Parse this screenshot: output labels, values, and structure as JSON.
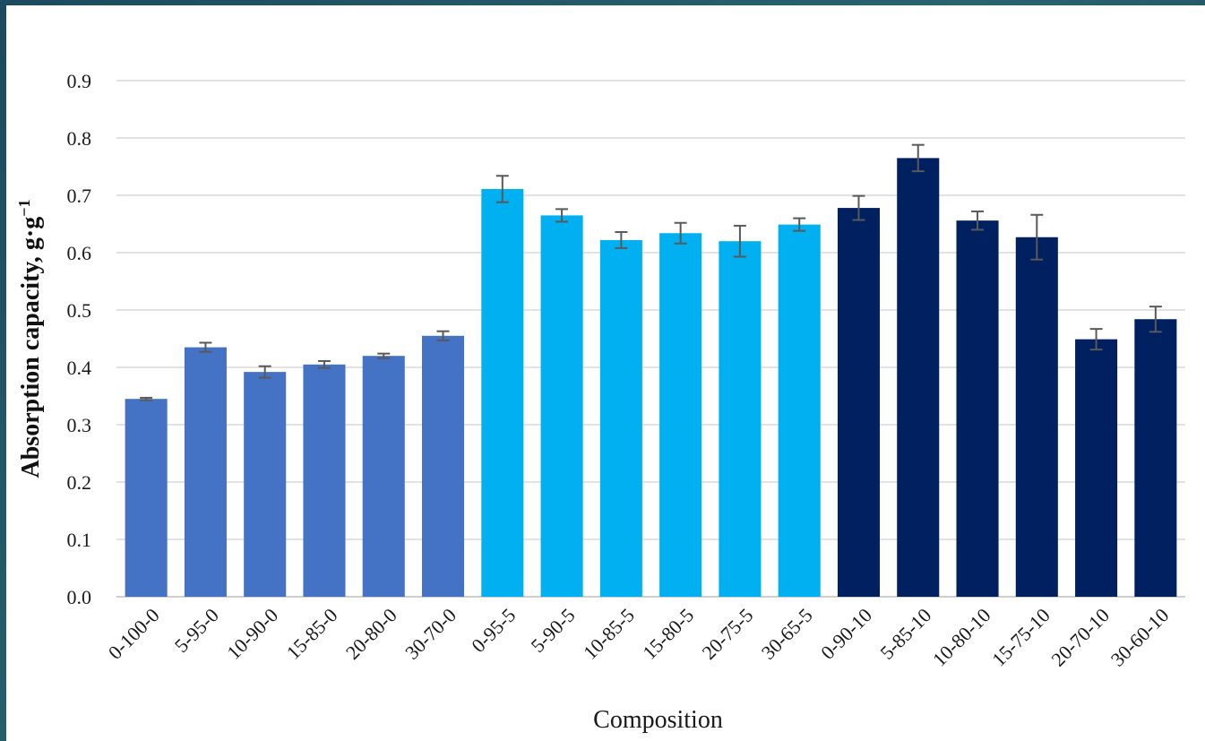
{
  "chart_data": {
    "type": "bar",
    "xlabel": "Composition",
    "ylabel": "Absorption capacity, g·g⁻¹",
    "ylim": [
      0,
      0.9
    ],
    "yticks": [
      "0.0",
      "0.1",
      "0.2",
      "0.3",
      "0.4",
      "0.5",
      "0.6",
      "0.7",
      "0.8",
      "0.9"
    ],
    "grid": true,
    "categories": [
      "0-100-0",
      "5-95-0",
      "10-90-0",
      "15-85-0",
      "20-80-0",
      "30-70-0",
      "0-95-5",
      "5-90-5",
      "10-85-5",
      "15-80-5",
      "20-75-5",
      "30-65-5",
      "0-90-10",
      "5-85-10",
      "10-80-10",
      "15-75-10",
      "20-70-10",
      "30-60-10"
    ],
    "values": [
      0.345,
      0.435,
      0.392,
      0.405,
      0.42,
      0.455,
      0.711,
      0.665,
      0.622,
      0.634,
      0.62,
      0.649,
      0.678,
      0.765,
      0.656,
      0.627,
      0.449,
      0.484
    ],
    "errors": [
      0.002,
      0.008,
      0.01,
      0.006,
      0.004,
      0.008,
      0.023,
      0.011,
      0.014,
      0.018,
      0.027,
      0.011,
      0.021,
      0.023,
      0.016,
      0.039,
      0.018,
      0.022
    ],
    "colors": [
      "#4472c4",
      "#4472c4",
      "#4472c4",
      "#4472c4",
      "#4472c4",
      "#4472c4",
      "#00b0f0",
      "#00b0f0",
      "#00b0f0",
      "#00b0f0",
      "#00b0f0",
      "#00b0f0",
      "#002060",
      "#002060",
      "#002060",
      "#002060",
      "#002060",
      "#002060"
    ]
  }
}
